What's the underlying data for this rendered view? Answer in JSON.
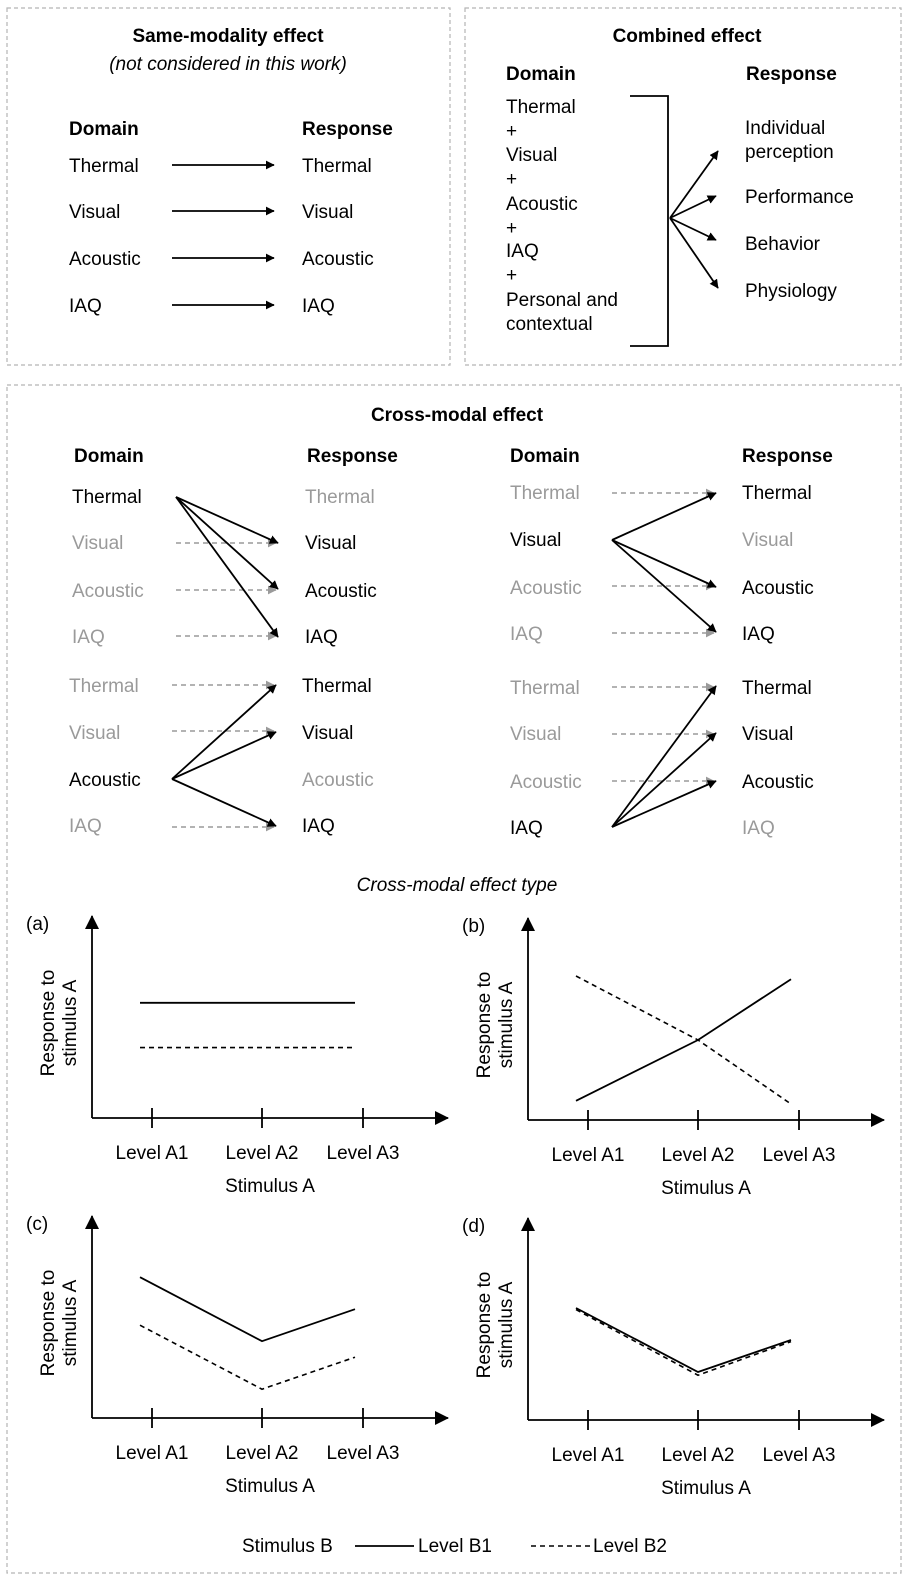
{
  "same_modality": {
    "title": "Same-modality effect",
    "subtitle": "(not considered in this work)",
    "domain_header": "Domain",
    "response_header": "Response",
    "rows": [
      {
        "domain": "Thermal",
        "response": "Thermal"
      },
      {
        "domain": "Visual",
        "response": "Visual"
      },
      {
        "domain": "Acoustic",
        "response": "Acoustic"
      },
      {
        "domain": "IAQ",
        "response": "IAQ"
      }
    ]
  },
  "combined": {
    "title": "Combined effect",
    "domain_header": "Domain",
    "response_header": "Response",
    "domain_lines": [
      "Thermal",
      "+",
      "Visual",
      "+",
      "Acoustic",
      "+",
      "IAQ",
      "+",
      "Personal and",
      "contextual"
    ],
    "responses": [
      "Individual",
      "perception",
      "Performance",
      "Behavior",
      "Physiology"
    ]
  },
  "cross_modal": {
    "title": "Cross-modal effect",
    "domain_header": "Domain",
    "response_header": "Response",
    "labels": [
      "Thermal",
      "Visual",
      "Acoustic",
      "IAQ"
    ],
    "groups": [
      {
        "source": "Thermal"
      },
      {
        "source": "Visual"
      },
      {
        "source": "Acoustic"
      },
      {
        "source": "IAQ"
      }
    ]
  },
  "effect_type": {
    "title": "Cross-modal effect type",
    "panels": [
      {
        "id": "(a)",
        "ylabel_line1": "Response to",
        "ylabel_line2": "stimulus A",
        "xlabel": "Stimulus A",
        "ticks": [
          "Level A1",
          "Level A2",
          "Level A3"
        ],
        "b1": [
          0.72,
          0.72,
          0.72
        ],
        "b2": [
          0.44,
          0.44,
          0.44
        ]
      },
      {
        "id": "(b)",
        "ylabel_line1": "Response to",
        "ylabel_line2": "stimulus A",
        "xlabel": "Stimulus A",
        "ticks": [
          "Level A1",
          "Level A2",
          "Level A3"
        ],
        "b1": [
          0.12,
          0.5,
          0.88
        ],
        "b2": [
          0.9,
          0.5,
          0.1
        ]
      },
      {
        "id": "(c)",
        "ylabel_line1": "Response to",
        "ylabel_line2": "stimulus A",
        "xlabel": "Stimulus A",
        "ticks": [
          "Level A1",
          "Level A2",
          "Level A3"
        ],
        "b1": [
          0.88,
          0.48,
          0.68
        ],
        "b2": [
          0.58,
          0.18,
          0.38
        ]
      },
      {
        "id": "(d)",
        "ylabel_line1": "Response to",
        "ylabel_line2": "stimulus A",
        "xlabel": "Stimulus A",
        "ticks": [
          "Level A1",
          "Level A2",
          "Level A3"
        ],
        "b1": [
          0.7,
          0.3,
          0.5
        ],
        "b2": [
          0.69,
          0.28,
          0.49
        ]
      }
    ]
  },
  "legend": {
    "label": "Stimulus B",
    "b1": "Level B1",
    "b2": "Level B2"
  }
}
